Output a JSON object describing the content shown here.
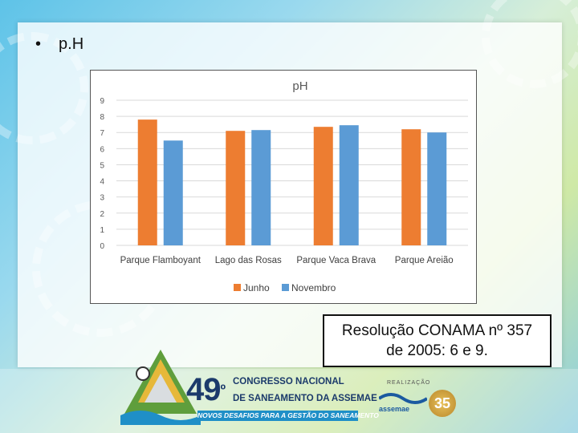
{
  "slide": {
    "bullet": "•",
    "heading": "p.H",
    "note_line1": "Resolução CONAMA nº 357",
    "note_line2": "de 2005: 6 e 9."
  },
  "chart_data": {
    "type": "bar",
    "title": "pH",
    "categories": [
      "Parque Flamboyant",
      "Lago das Rosas",
      "Parque Vaca Brava",
      "Parque Areião"
    ],
    "series": [
      {
        "name": "Junho",
        "values": [
          7.8,
          7.1,
          7.35,
          7.2
        ],
        "color": "#ed7d31"
      },
      {
        "name": "Novembro",
        "values": [
          6.5,
          7.15,
          7.45,
          7.0
        ],
        "color": "#5b9bd5"
      }
    ],
    "yticks": [
      0,
      1,
      2,
      3,
      4,
      5,
      6,
      7,
      8,
      9
    ],
    "ylim": [
      0,
      9
    ],
    "grid": true,
    "legend": "bottom"
  },
  "footer": {
    "congress_number": "49",
    "congress_ordinal": "º",
    "congress_line1": "CONGRESSO NACIONAL",
    "congress_line2": "DE SANEAMENTO DA ASSEMAE",
    "congress_tagline": "NOVOS DESAFIOS PARA A GESTÃO DO SANEAMENTO",
    "realizacao": "REALIZAÇÃO",
    "org_name": "assemae",
    "years": "35"
  },
  "colors": {
    "accent_blue": "#1b3a6b",
    "tag_blue": "#1f8fc7"
  }
}
